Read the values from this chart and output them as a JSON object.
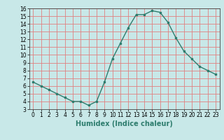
{
  "xlabel": "Humidex (Indice chaleur)",
  "x_values": [
    0,
    1,
    2,
    3,
    4,
    5,
    6,
    7,
    8,
    9,
    10,
    11,
    12,
    13,
    14,
    15,
    16,
    17,
    18,
    19,
    20,
    21,
    22,
    23
  ],
  "y_values": [
    6.5,
    6.0,
    5.5,
    5.0,
    4.5,
    4.0,
    4.0,
    3.5,
    4.0,
    6.5,
    9.5,
    11.5,
    13.5,
    15.2,
    15.2,
    15.7,
    15.5,
    14.2,
    12.2,
    10.5,
    9.5,
    8.5,
    8.0,
    7.5
  ],
  "ylim": [
    3,
    16
  ],
  "xlim": [
    -0.5,
    23.5
  ],
  "yticks": [
    3,
    4,
    5,
    6,
    7,
    8,
    9,
    10,
    11,
    12,
    13,
    14,
    15,
    16
  ],
  "xticks": [
    0,
    1,
    2,
    3,
    4,
    5,
    6,
    7,
    8,
    9,
    10,
    11,
    12,
    13,
    14,
    15,
    16,
    17,
    18,
    19,
    20,
    21,
    22,
    23
  ],
  "line_color": "#2e7d6e",
  "marker_color": "#2e7d6e",
  "bg_color": "#c8e8e8",
  "plot_bg_color": "#c8e8e8",
  "grid_color": "#e08080",
  "tick_label_fontsize": 5.5,
  "xlabel_fontsize": 7.0
}
